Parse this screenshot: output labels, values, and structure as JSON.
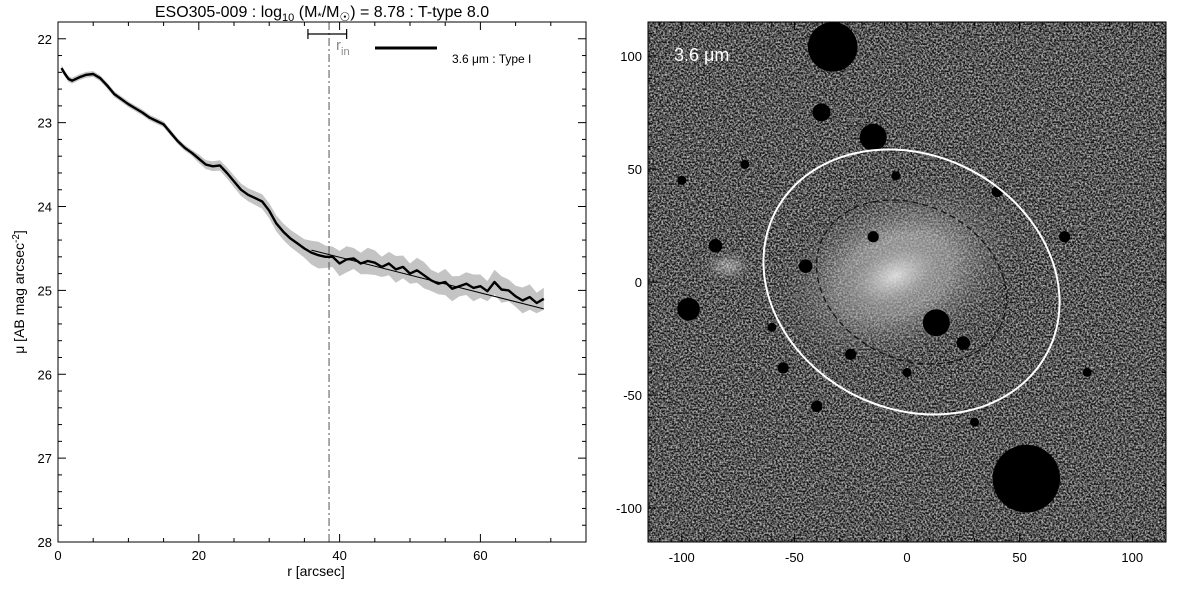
{
  "chart_data": [
    {
      "type": "line",
      "title": "ESO305-009 : log10 (M*/M☉) = 8.78 : T-type 8.0",
      "title_parts": {
        "pre": "ESO305-009 : log",
        "sub10": "10",
        "mid1": " (M",
        "star": "*",
        "mid2": "/M",
        "sun": "☉",
        "post": ") = 8.78 : T-type 8.0"
      },
      "xlabel": "r [arcsec]",
      "ylabel": "μ [AB mag arcsec",
      "ylabel_sup": "-2",
      "ylabel_close": "]",
      "xlim": [
        0,
        75
      ],
      "ylim": [
        28,
        21.8
      ],
      "y_inverted": true,
      "x_ticks": [
        0,
        20,
        40,
        60
      ],
      "y_ticks": [
        22,
        23,
        24,
        25,
        26,
        27,
        28
      ],
      "legend": {
        "label": "3.6 μm : Type I",
        "placement": "top-right"
      },
      "annotations": {
        "r_in_label": "r",
        "r_in_sub": "in"
      },
      "r_in": 38.5,
      "r_in_range": [
        35.5,
        41.0
      ],
      "series": [
        {
          "kind": "profile",
          "x": [
            0.5,
            1,
            1.5,
            2,
            3,
            4,
            5,
            6,
            7,
            8,
            9,
            10,
            11,
            12,
            13,
            14,
            15,
            16,
            17,
            18,
            19,
            20,
            21,
            22,
            23,
            24,
            25,
            26,
            27,
            28,
            29,
            30,
            31,
            32,
            33,
            34,
            35,
            36,
            37,
            38,
            39,
            40,
            41,
            42,
            43,
            44,
            45,
            46,
            47,
            48,
            49,
            50,
            51,
            52,
            53,
            54,
            55,
            56,
            57,
            58,
            59,
            60,
            61,
            62,
            63,
            64,
            65,
            66,
            67,
            68,
            69
          ],
          "y": [
            22.35,
            22.42,
            22.48,
            22.5,
            22.46,
            22.43,
            22.42,
            22.47,
            22.56,
            22.66,
            22.72,
            22.78,
            22.83,
            22.88,
            22.94,
            22.98,
            23.02,
            23.12,
            23.22,
            23.3,
            23.36,
            23.43,
            23.5,
            23.52,
            23.51,
            23.6,
            23.7,
            23.8,
            23.86,
            23.9,
            23.94,
            24.05,
            24.2,
            24.3,
            24.38,
            24.44,
            24.5,
            24.55,
            24.58,
            24.6,
            24.6,
            24.68,
            24.63,
            24.62,
            24.68,
            24.65,
            24.67,
            24.72,
            24.68,
            24.75,
            24.72,
            24.8,
            24.76,
            24.82,
            24.88,
            24.92,
            24.9,
            24.98,
            24.95,
            24.92,
            24.97,
            24.95,
            25.01,
            24.9,
            24.99,
            25.0,
            25.07,
            25.12,
            25.08,
            25.15,
            25.1
          ]
        },
        {
          "kind": "fit",
          "x": [
            36,
            69
          ],
          "y": [
            24.52,
            25.22
          ]
        }
      ]
    },
    {
      "type": "heatmap",
      "label": "3.6 μm",
      "xlim": [
        -115,
        115
      ],
      "ylim": [
        -115,
        115
      ],
      "x_ticks": [
        -100,
        -50,
        0,
        50,
        100
      ],
      "y_ticks": [
        -100,
        -50,
        0,
        50,
        100
      ],
      "ellipses": [
        {
          "cx": 2,
          "cy": 0,
          "a": 68,
          "b": 56,
          "angle_deg": 27,
          "color": "#ffffff",
          "style": "solid"
        },
        {
          "cx": 2,
          "cy": 0,
          "a": 44,
          "b": 34,
          "angle_deg": 27,
          "color": "#111111",
          "style": "dashed"
        }
      ],
      "masks": [
        {
          "x": -33,
          "y": 104,
          "r": 11
        },
        {
          "x": 53,
          "y": -87,
          "r": 15
        },
        {
          "x": -15,
          "y": 64,
          "r": 6
        },
        {
          "x": -38,
          "y": 75,
          "r": 4
        },
        {
          "x": 13,
          "y": -18,
          "r": 6
        },
        {
          "x": -97,
          "y": -12,
          "r": 5
        },
        {
          "x": -85,
          "y": 16,
          "r": 3
        },
        {
          "x": -45,
          "y": 7,
          "r": 3
        },
        {
          "x": -15,
          "y": 20,
          "r": 2.5
        },
        {
          "x": 25,
          "y": -27,
          "r": 3
        },
        {
          "x": -25,
          "y": -32,
          "r": 2.5
        },
        {
          "x": -55,
          "y": -38,
          "r": 2.5
        },
        {
          "x": -72,
          "y": 52,
          "r": 2
        },
        {
          "x": 40,
          "y": 40,
          "r": 2.5
        },
        {
          "x": 70,
          "y": 20,
          "r": 2.5
        },
        {
          "x": -40,
          "y": -55,
          "r": 2.5
        },
        {
          "x": 0,
          "y": -40,
          "r": 2
        },
        {
          "x": 30,
          "y": -62,
          "r": 2
        },
        {
          "x": -100,
          "y": 45,
          "r": 2
        },
        {
          "x": 80,
          "y": -40,
          "r": 2
        },
        {
          "x": -5,
          "y": 47,
          "r": 2
        },
        {
          "x": -60,
          "y": -20,
          "r": 2
        }
      ]
    }
  ]
}
